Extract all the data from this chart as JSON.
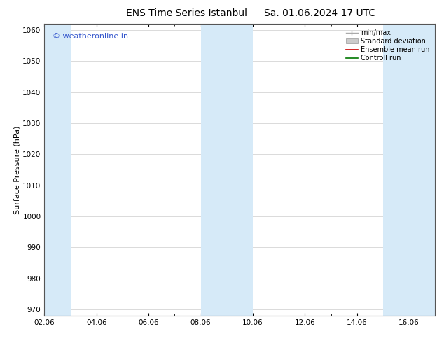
{
  "title_left": "ENS Time Series Istanbul",
  "title_right": "Sa. 01.06.2024 17 UTC",
  "ylabel": "Surface Pressure (hPa)",
  "ylim": [
    968,
    1062
  ],
  "yticks": [
    970,
    980,
    990,
    1000,
    1010,
    1020,
    1030,
    1040,
    1050,
    1060
  ],
  "xlim": [
    2.0,
    17.0
  ],
  "xtick_labels": [
    "02.06",
    "04.06",
    "06.06",
    "08.06",
    "10.06",
    "12.06",
    "14.06",
    "16.06"
  ],
  "xtick_positions": [
    2,
    4,
    6,
    8,
    10,
    12,
    14,
    16
  ],
  "shaded_bands": [
    {
      "x_start": 2.0,
      "x_end": 3.0,
      "color": "#d6eaf8",
      "alpha": 1.0
    },
    {
      "x_start": 8.0,
      "x_end": 10.0,
      "color": "#d6eaf8",
      "alpha": 1.0
    },
    {
      "x_start": 15.0,
      "x_end": 17.0,
      "color": "#d6eaf8",
      "alpha": 1.0
    }
  ],
  "watermark_text": "© weatheronline.in",
  "watermark_color": "#3355cc",
  "watermark_fontsize": 8,
  "background_color": "#ffffff",
  "plot_bg_color": "#ffffff",
  "grid_color": "#cccccc",
  "title_fontsize": 10,
  "axis_label_fontsize": 8,
  "tick_fontsize": 7.5,
  "legend_fontsize": 7
}
